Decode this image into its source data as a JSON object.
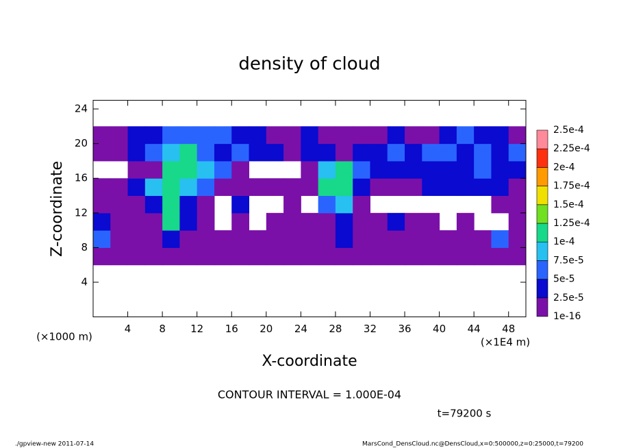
{
  "chart_data": {
    "type": "contour",
    "title": "density of cloud",
    "x_label": "X-coordinate",
    "y_label": "Z-coordinate",
    "x_unit": "(×1E4 m)",
    "y_unit": "(×1000 m)",
    "contour_interval": "CONTOUR INTERVAL = 1.000E-04",
    "time": "t=79200 s",
    "footer_left": "./gpview-new  2011-07-14",
    "footer_right": "MarsCond_DensCloud.nc@DensCloud,x=0:500000,z=0:25000,t=79200",
    "xlim": [
      0,
      50
    ],
    "ylim": [
      0,
      25
    ],
    "xticks": [
      4,
      8,
      12,
      16,
      20,
      24,
      28,
      32,
      36,
      40,
      44,
      48
    ],
    "yticks": [
      4,
      8,
      12,
      16,
      20,
      24
    ],
    "levels": [
      {
        "value": 1e-16,
        "label": "1e-16"
      },
      {
        "value": 2.5e-05,
        "label": "2.5e-5"
      },
      {
        "value": 5e-05,
        "label": "5e-5"
      },
      {
        "value": 7.5e-05,
        "label": "7.5e-5"
      },
      {
        "value": 0.0001,
        "label": "1e-4"
      },
      {
        "value": 0.000125,
        "label": "1.25e-4"
      },
      {
        "value": 0.00015,
        "label": "1.5e-4"
      },
      {
        "value": 0.000175,
        "label": "1.75e-4"
      },
      {
        "value": 0.0002,
        "label": "2e-4"
      },
      {
        "value": 0.000225,
        "label": "2.25e-4"
      },
      {
        "value": 0.00025,
        "label": "2.5e-4"
      }
    ],
    "colors": [
      "#7a10a8",
      "#0a0ad0",
      "#2a64ff",
      "#28c0f0",
      "#18d88a",
      "#70e020",
      "#f0e000",
      "#ff9a00",
      "#ff3010",
      "#ff8a9a"
    ],
    "field": {
      "x": [
        1,
        3,
        5,
        7,
        9,
        11,
        13,
        15,
        17,
        19,
        21,
        23,
        25,
        27,
        29,
        31,
        33,
        35,
        37,
        39,
        41,
        43,
        45,
        47,
        49
      ],
      "z": [
        7,
        9,
        11,
        13,
        15,
        17,
        19,
        21
      ],
      "values": [
        [
          1e-05,
          1e-05,
          1e-05,
          1e-05,
          1e-05,
          1e-05,
          1e-05,
          1e-05,
          1e-05,
          1e-05,
          1e-05,
          1e-05,
          1e-05,
          1e-05,
          1e-05,
          1e-05,
          1e-05,
          1e-05,
          1e-05,
          1e-05,
          1e-05,
          1e-05,
          1e-05,
          1e-05,
          1e-05
        ],
        [
          6e-05,
          1e-05,
          1e-05,
          1e-05,
          3e-05,
          1e-05,
          1e-05,
          1e-05,
          1e-05,
          1e-05,
          1e-05,
          1e-05,
          1e-05,
          1e-05,
          3e-05,
          1e-05,
          1e-05,
          1e-05,
          1e-05,
          1e-05,
          1e-05,
          1e-05,
          1e-05,
          6e-05,
          1e-05
        ],
        [
          3e-05,
          1e-05,
          1e-05,
          1e-05,
          0.00012,
          3e-05,
          1e-05,
          null,
          1e-05,
          null,
          1e-05,
          1e-05,
          1e-05,
          1e-05,
          3e-05,
          1e-05,
          1e-05,
          3e-05,
          1e-05,
          1e-05,
          null,
          1e-05,
          null,
          null,
          1e-05
        ],
        [
          1e-05,
          1e-05,
          1e-05,
          3e-05,
          0.00012,
          3e-05,
          1e-05,
          null,
          3e-05,
          null,
          null,
          1e-05,
          null,
          6e-05,
          8e-05,
          1e-05,
          null,
          null,
          null,
          null,
          null,
          null,
          null,
          1e-05,
          1e-05
        ],
        [
          1e-05,
          1e-05,
          3e-05,
          8e-05,
          0.00012,
          8e-05,
          6e-05,
          1e-05,
          1e-05,
          1e-05,
          1e-05,
          1e-05,
          1e-05,
          0.00012,
          0.00012,
          3e-05,
          1e-05,
          1e-05,
          1e-05,
          3e-05,
          3e-05,
          3e-05,
          3e-05,
          3e-05,
          1e-05
        ],
        [
          null,
          null,
          1e-05,
          1e-05,
          0.00012,
          0.00012,
          8e-05,
          6e-05,
          1e-05,
          null,
          null,
          null,
          1e-05,
          8e-05,
          0.00012,
          6e-05,
          3e-05,
          3e-05,
          3e-05,
          3e-05,
          3e-05,
          3e-05,
          6e-05,
          3e-05,
          3e-05
        ],
        [
          1e-05,
          1e-05,
          3e-05,
          6e-05,
          8e-05,
          0.00012,
          6e-05,
          3e-05,
          6e-05,
          3e-05,
          3e-05,
          1e-05,
          3e-05,
          3e-05,
          1e-05,
          3e-05,
          3e-05,
          6e-05,
          3e-05,
          6e-05,
          6e-05,
          3e-05,
          6e-05,
          3e-05,
          6e-05
        ],
        [
          1e-05,
          1e-05,
          3e-05,
          3e-05,
          6e-05,
          6e-05,
          6e-05,
          6e-05,
          3e-05,
          3e-05,
          1e-05,
          1e-05,
          3e-05,
          1e-05,
          1e-05,
          1e-05,
          1e-05,
          3e-05,
          1e-05,
          1e-05,
          3e-05,
          6e-05,
          3e-05,
          3e-05,
          1e-05
        ]
      ]
    }
  }
}
